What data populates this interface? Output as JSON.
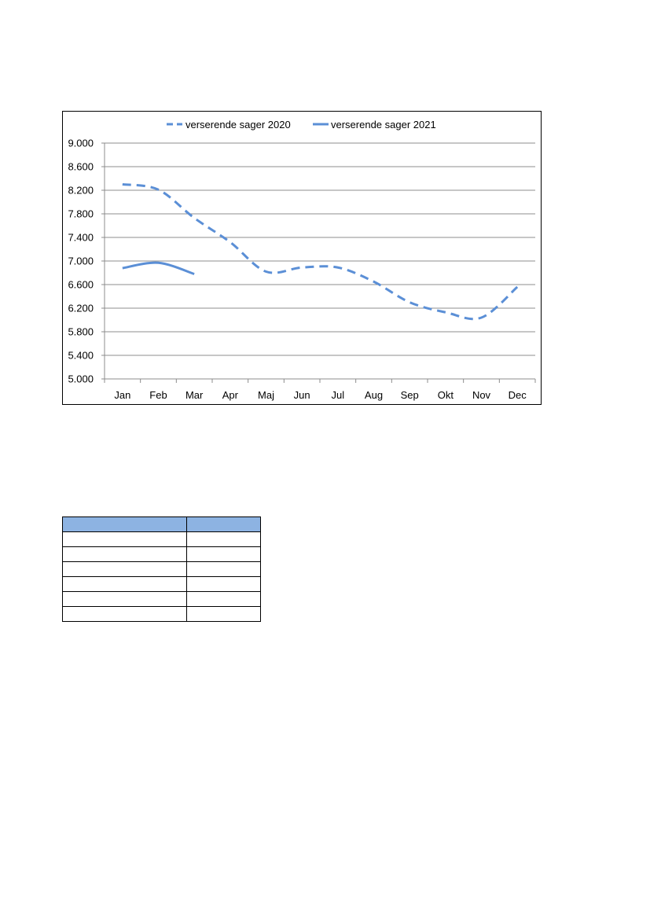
{
  "chart_data": {
    "type": "line",
    "title": "",
    "xlabel": "",
    "ylabel": "",
    "categories": [
      "Jan",
      "Feb",
      "Mar",
      "Apr",
      "Maj",
      "Jun",
      "Jul",
      "Aug",
      "Sep",
      "Okt",
      "Nov",
      "Dec"
    ],
    "ylim": [
      5000,
      9000
    ],
    "yticks": [
      5000,
      5400,
      5800,
      6200,
      6600,
      7000,
      7400,
      7800,
      8200,
      8600,
      9000
    ],
    "ytick_labels": [
      "5.000",
      "5.400",
      "5.800",
      "6.200",
      "6.600",
      "7.000",
      "7.400",
      "7.800",
      "8.200",
      "8.600",
      "9.000"
    ],
    "grid": true,
    "legend_position": "top",
    "series": [
      {
        "name": "verserende sager 2020",
        "line_style": "dashed",
        "color": "#5b8fd6",
        "values": [
          8300,
          8210,
          7730,
          7320,
          6820,
          6890,
          6890,
          6650,
          6300,
          6130,
          6040,
          6560
        ]
      },
      {
        "name": "verserende sager 2021",
        "line_style": "solid",
        "color": "#5b8fd6",
        "values": [
          6880,
          6970,
          6780,
          null,
          null,
          null,
          null,
          null,
          null,
          null,
          null,
          null
        ]
      }
    ]
  },
  "table": {
    "header_color": "#8db3e2",
    "header": [
      "",
      ""
    ],
    "rows": [
      [
        "",
        ""
      ],
      [
        "",
        ""
      ],
      [
        "",
        ""
      ],
      [
        "",
        ""
      ],
      [
        "",
        ""
      ],
      [
        "",
        ""
      ]
    ]
  }
}
